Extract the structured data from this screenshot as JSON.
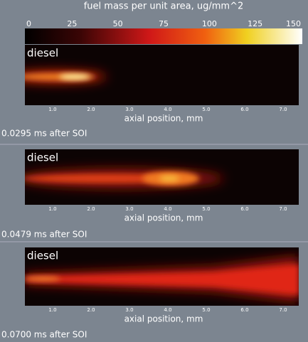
{
  "colorbar": {
    "title": "fuel mass per unit area, ug/mm^2",
    "ticks": [
      "0",
      "25",
      "50",
      "75",
      "100",
      "125",
      "150"
    ]
  },
  "panels": [
    {
      "label": "diesel",
      "xticks": [
        "1.0",
        "2.0",
        "3.0",
        "4.0",
        "5.0",
        "6.0",
        "7.0"
      ],
      "xlabel": "axial position, mm",
      "caption": "0.0295 ms after SOI"
    },
    {
      "label": "diesel",
      "xticks": [
        "1.0",
        "2.0",
        "3.0",
        "4.0",
        "5.0",
        "6.0",
        "7.0"
      ],
      "xlabel": "axial position, mm",
      "caption": "0.0479 ms after SOI"
    },
    {
      "label": "diesel",
      "xticks": [
        "1.0",
        "2.0",
        "3.0",
        "4.0",
        "5.0",
        "6.0",
        "7.0"
      ],
      "xlabel": "axial position, mm",
      "caption": "0.0700 ms after SOI"
    }
  ]
}
